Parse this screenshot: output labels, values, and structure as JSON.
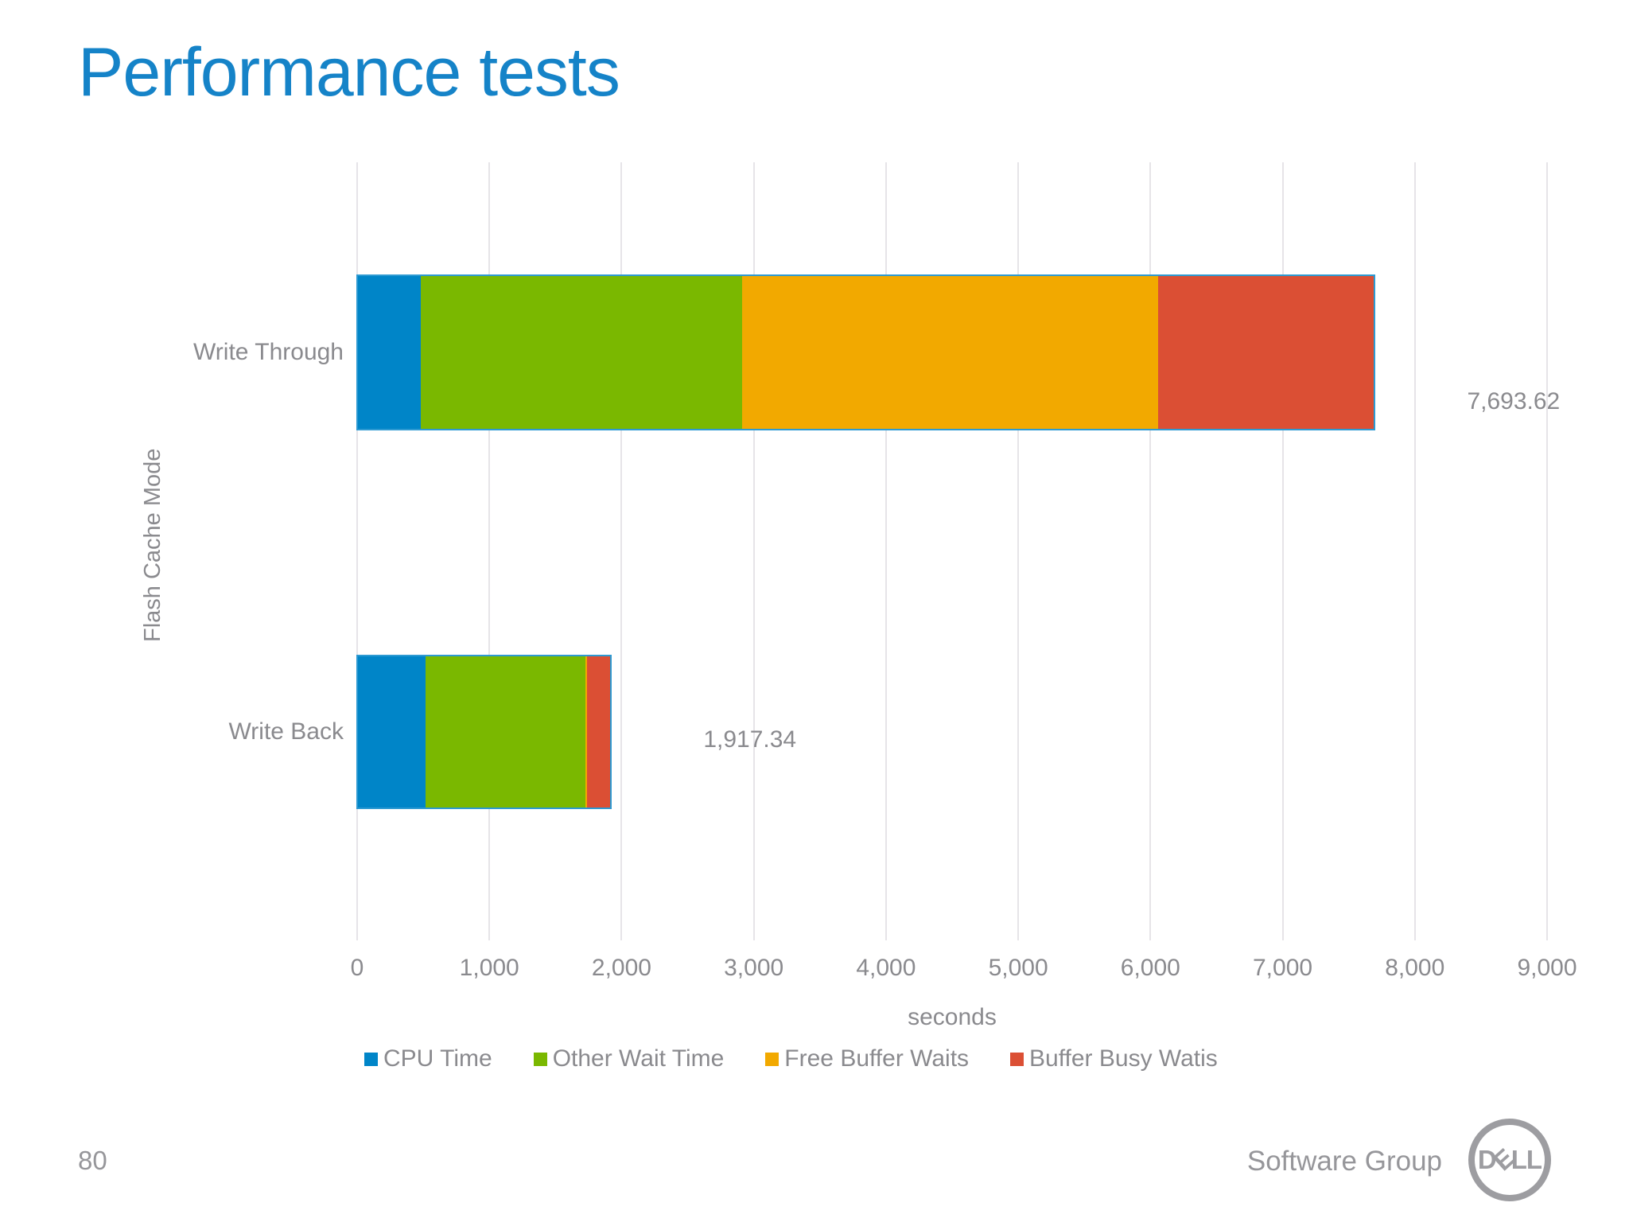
{
  "slide": {
    "title": "Performance tests",
    "page_number": "80",
    "footer_right": "Software Group",
    "logo": {
      "d": "D",
      "e": "E",
      "ll": "LL"
    }
  },
  "chart_data": {
    "type": "bar",
    "orientation": "horizontal",
    "stacked": true,
    "title": "",
    "xlabel": "seconds",
    "ylabel": "Flash Cache Mode",
    "xlim": [
      0,
      9000
    ],
    "x_ticks": [
      "0",
      "1,000",
      "2,000",
      "3,000",
      "4,000",
      "5,000",
      "6,000",
      "7,000",
      "8,000",
      "9,000"
    ],
    "grid": "vertical",
    "legend_position": "bottom",
    "categories": [
      "Write Through",
      "Write Back"
    ],
    "series": [
      {
        "name": "CPU Time",
        "color": "#0085C8",
        "values": [
          480,
          520
        ]
      },
      {
        "name": "Other Wait Time",
        "color": "#7AB800",
        "values": [
          2432,
          1207
        ]
      },
      {
        "name": "Free Buffer Waits",
        "color": "#F2A900",
        "values": [
          3148,
          12
        ]
      },
      {
        "name": "Buffer Busy Watis",
        "color": "#DB4F34",
        "values": [
          1633.62,
          178.34
        ]
      }
    ],
    "totals": [
      7693.62,
      1917.34
    ],
    "total_labels": [
      "7,693.62",
      "1,917.34"
    ]
  }
}
